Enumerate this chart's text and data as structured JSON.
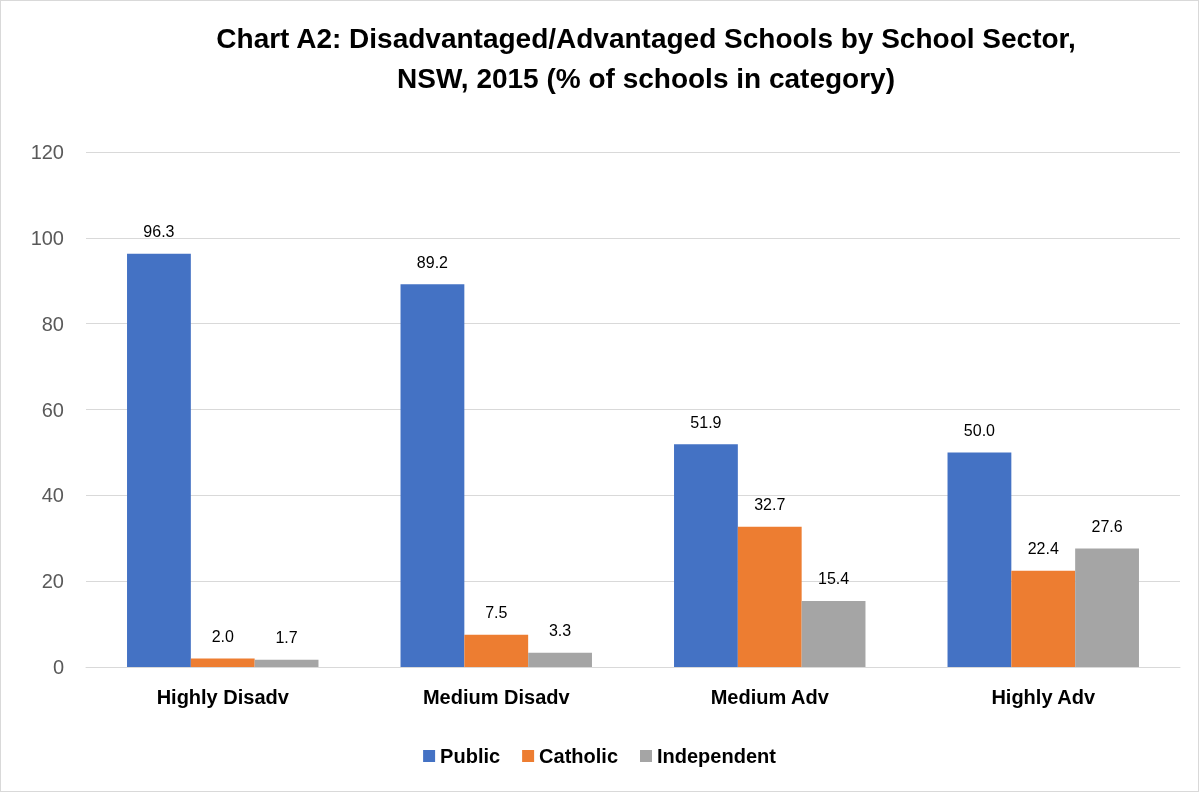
{
  "chart_data": {
    "type": "bar",
    "title": "Chart A2: Disadvantaged/Advantaged Schools by School Sector,\nNSW, 2015 (% of schools in category)",
    "categories": [
      "Highly Disadv",
      "Medium Disadv",
      "Medium Adv",
      "Highly Adv"
    ],
    "series": [
      {
        "name": "Public",
        "color": "#4472c4",
        "values": [
          96.3,
          89.2,
          51.9,
          50.0
        ],
        "value_labels": [
          "96.3",
          "89.2",
          "51.9",
          "50.0"
        ]
      },
      {
        "name": "Catholic",
        "color": "#ed7d31",
        "values": [
          2.0,
          7.5,
          32.7,
          22.4
        ],
        "value_labels": [
          "2.0",
          "7.5",
          "32.7",
          "22.4"
        ]
      },
      {
        "name": "Independent",
        "color": "#a5a5a5",
        "values": [
          1.7,
          3.3,
          15.4,
          27.6
        ],
        "value_labels": [
          "1.7",
          "3.3",
          "15.4",
          "27.6"
        ]
      }
    ],
    "ylim": [
      0,
      120
    ],
    "yticks": [
      0,
      20,
      40,
      60,
      80,
      100,
      120
    ],
    "grid": "y",
    "legend": "bottom"
  }
}
